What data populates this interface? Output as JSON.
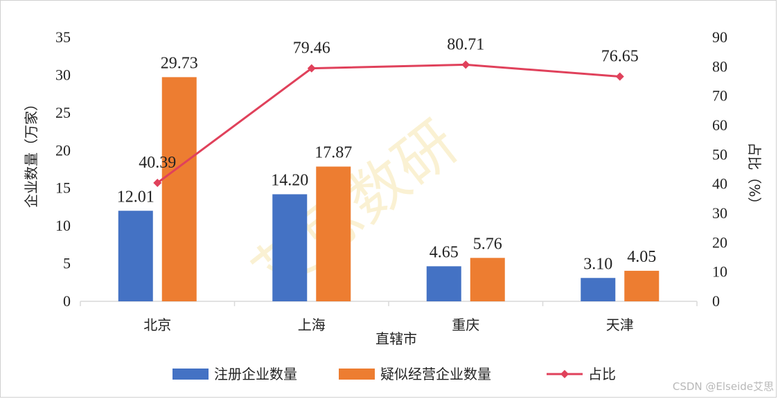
{
  "chart_data": {
    "type": "bar",
    "categories": [
      "北京",
      "上海",
      "重庆",
      "天津"
    ],
    "series": [
      {
        "name": "注册企业数量",
        "kind": "bar",
        "axis": "left",
        "color": "#4472C4",
        "values": [
          12.01,
          14.2,
          4.65,
          3.1
        ]
      },
      {
        "name": "疑似经营企业数量",
        "kind": "bar",
        "axis": "left",
        "color": "#ED7D31",
        "values": [
          29.73,
          17.87,
          5.76,
          4.05
        ]
      },
      {
        "name": "占比",
        "kind": "line",
        "axis": "right",
        "color": "#E0415B",
        "values": [
          40.39,
          79.46,
          80.71,
          76.65
        ]
      }
    ],
    "value_labels": {
      "bars": [
        [
          "12.01",
          "14.20",
          "4.65",
          "3.10"
        ],
        [
          "29.73",
          "17.87",
          "5.76",
          "4.05"
        ]
      ],
      "line": [
        "40.39",
        "79.46",
        "80.71",
        "76.65"
      ]
    },
    "xlabel": "直辖市",
    "ylabel": "企业数量（万家）",
    "y2label": "占比（%）",
    "ylim": [
      0,
      35
    ],
    "yticks": [
      "0",
      "5",
      "10",
      "15",
      "20",
      "25",
      "30",
      "35"
    ],
    "y2lim": [
      0,
      90
    ],
    "y2ticks": [
      "0",
      "10",
      "20",
      "30",
      "40",
      "50",
      "60",
      "70",
      "80",
      "90"
    ],
    "grid": false,
    "legend_position": "bottom",
    "watermark": "艾思数研"
  },
  "footer": "CSDN @Elseide艾思"
}
